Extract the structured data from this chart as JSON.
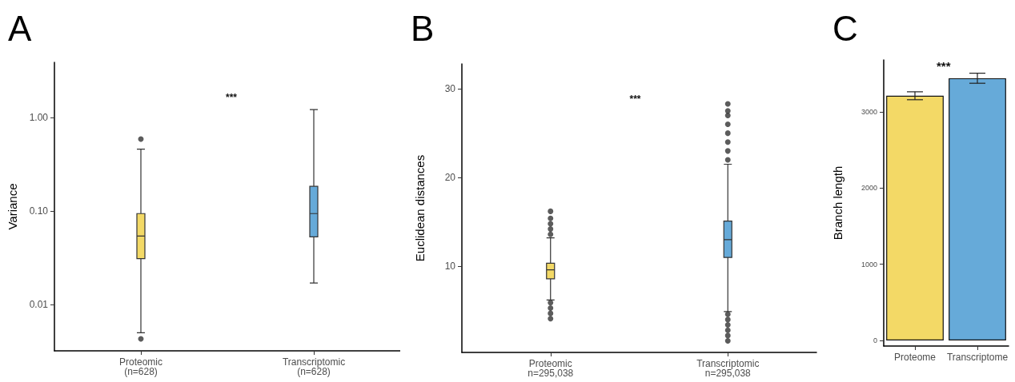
{
  "chart_data": [
    {
      "type": "box",
      "title": "A",
      "ylabel": "Variance",
      "log": true,
      "categories": [
        "Proteomic\n(n=628)",
        "Transcriptomic\n(n=628)"
      ],
      "colors": [
        "#f3d966",
        "#66aad9"
      ],
      "boxes": [
        {
          "low": 0.005,
          "q1": 0.031,
          "median": 0.054,
          "q3": 0.094,
          "high": 0.46,
          "outliers": [
            0.0043,
            0.59
          ]
        },
        {
          "low": 0.017,
          "q1": 0.053,
          "median": 0.094,
          "q3": 0.184,
          "high": 1.22
        }
      ],
      "ylim": [
        0.0032,
        3.9
      ],
      "yticks": [
        {
          "value": 0.01,
          "label": "0.01"
        },
        {
          "value": 0.1,
          "label": "0.10"
        },
        {
          "value": 1,
          "label": "1.00"
        }
      ],
      "grid": false,
      "annotations": [
        "***"
      ]
    },
    {
      "type": "box",
      "title": "B",
      "ylabel": "Euclidean distances",
      "categories": [
        "Proteomic\nn=295,038",
        "Transcriptomic\nn=295,038"
      ],
      "colors": [
        "#f3d966",
        "#66aad9"
      ],
      "boxes": [
        {
          "low": 6.2,
          "q1": 8.6,
          "median": 9.6,
          "q3": 10.35,
          "high": 13.2,
          "outliers": [
            4.1,
            4.7,
            5.3,
            5.9,
            13.6,
            14.2,
            14.8,
            15.4,
            16.2
          ]
        },
        {
          "low": 4.9,
          "q1": 11.0,
          "median": 13.0,
          "q3": 15.1,
          "high": 21.5,
          "outliers": [
            1.6,
            2.2,
            2.8,
            3.4,
            4.0,
            4.6,
            22.0,
            23.0,
            24.0,
            25.0,
            26.0,
            27.0,
            27.5,
            28.3
          ]
        }
      ],
      "ylim": [
        0.3,
        32.8
      ],
      "yticks": [
        10,
        20,
        30
      ],
      "grid": false,
      "annotations": [
        "***"
      ]
    },
    {
      "type": "bar",
      "title": "C",
      "ylabel": "Branch length",
      "categories": [
        "Proteome",
        "Transcriptome"
      ],
      "colors": [
        "#f3d966",
        "#66aad9"
      ],
      "values": [
        3210,
        3440
      ],
      "errors": [
        52,
        66
      ],
      "ylim": [
        -73,
        3680
      ],
      "yticks": [
        0,
        1000,
        2000,
        3000
      ],
      "grid": false,
      "annotations": [
        "***"
      ]
    }
  ]
}
